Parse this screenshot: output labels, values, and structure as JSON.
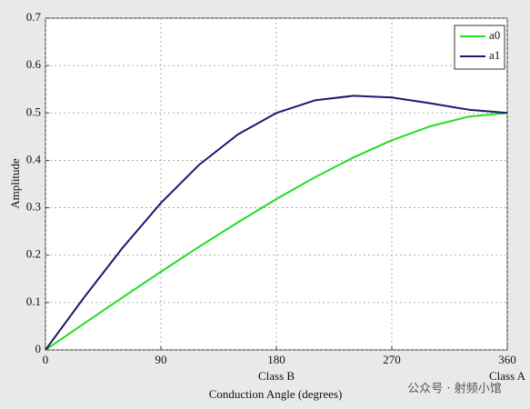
{
  "chart_data": {
    "type": "line",
    "x": [
      0,
      30,
      60,
      90,
      120,
      150,
      180,
      210,
      240,
      270,
      300,
      330,
      360
    ],
    "series": [
      {
        "name": "a0",
        "color": "#22dd22",
        "values": [
          0,
          0.0555,
          0.1107,
          0.1649,
          0.218,
          0.2693,
          0.3183,
          0.3642,
          0.406,
          0.4425,
          0.472,
          0.4923,
          0.5
        ]
      },
      {
        "name": "a1",
        "color": "#1a1a6e",
        "values": [
          0,
          0.1102,
          0.2152,
          0.3101,
          0.391,
          0.4548,
          0.5,
          0.5266,
          0.5363,
          0.5326,
          0.5205,
          0.5068,
          0.5
        ]
      }
    ],
    "xlim": [
      0,
      360
    ],
    "xticks": [
      0,
      90,
      180,
      270,
      360
    ],
    "ylim": [
      0,
      0.7
    ],
    "yticks": [
      0,
      0.1,
      0.2,
      0.3,
      0.4,
      0.5,
      0.6,
      0.7
    ],
    "grid": true,
    "legend": "upper right",
    "ylabel": "Amplitude",
    "xlabel": "Conduction Angle (degrees)",
    "annotations": [
      {
        "text": "Class B",
        "x": 180
      },
      {
        "text": "Class A",
        "x": 360
      }
    ],
    "watermark": "公众号 · 射频小馆"
  }
}
